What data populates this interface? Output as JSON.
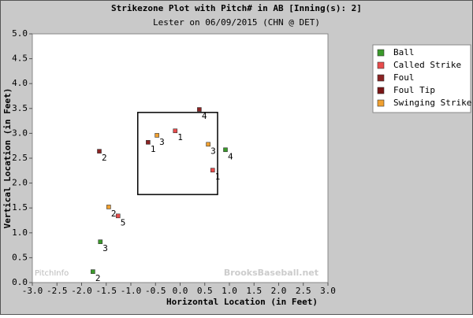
{
  "chart_data": {
    "type": "scatter",
    "title": "Strikezone Plot with Pitch# in AB [Inning(s): 2]",
    "subtitle": "Lester on 06/09/2015 (CHN @ DET)",
    "x_label": "Horizontal Location (in Feet)",
    "y_label": "Vertical Location (in Feet)",
    "xlim": [
      -3,
      3
    ],
    "ylim": [
      0,
      5
    ],
    "xticks": [
      {
        "value": -3,
        "label": "-3.0"
      },
      -2.5,
      {
        "value": -2,
        "label": "-2.0"
      },
      -1.5,
      {
        "value": -1,
        "label": "-1.0"
      },
      -0.5,
      {
        "value": 0,
        "label": "0.0"
      },
      0.5,
      {
        "value": 1,
        "label": "1.0"
      },
      1.5,
      {
        "value": 2,
        "label": "2.0"
      },
      2.5,
      {
        "value": 3,
        "label": "3.0"
      }
    ],
    "yticks": [
      {
        "value": 0,
        "label": "0.0"
      },
      0.5,
      {
        "value": 1,
        "label": "1.0"
      },
      1.5,
      {
        "value": 2,
        "label": "2.0"
      },
      2.5,
      {
        "value": 3,
        "label": "3.0"
      },
      3.5,
      {
        "value": 4,
        "label": "4.0"
      },
      4.5,
      {
        "value": 5,
        "label": "5.0"
      }
    ],
    "legend_position": "outside-top-right",
    "strike_zone": {
      "x": [
        -0.86,
        0.76
      ],
      "y": [
        1.77,
        3.42
      ]
    },
    "watermarks": [
      "PitchInfo",
      "BrooksBaseball.net"
    ],
    "series": [
      {
        "name": "Ball",
        "color": "#3a9a2a",
        "x": [
          0.92,
          -1.62,
          -1.77
        ],
        "values": [
          2.67,
          0.82,
          0.22
        ],
        "pitch_numbers": [
          4,
          3,
          2
        ]
      },
      {
        "name": "Called Strike",
        "color": "#e84c4c",
        "x": [
          -0.1,
          0.66,
          -1.26
        ],
        "values": [
          3.05,
          2.26,
          1.34
        ],
        "pitch_numbers": [
          1,
          1,
          5
        ]
      },
      {
        "name": "Foul",
        "color": "#8b2323",
        "x": [
          -1.64,
          -0.65,
          0.39
        ],
        "values": [
          2.64,
          2.82,
          3.48
        ],
        "pitch_numbers": [
          2,
          1,
          4
        ]
      },
      {
        "name": "Foul Tip",
        "color": "#7a1515",
        "x": [],
        "values": [],
        "pitch_numbers": []
      },
      {
        "name": "Swinging Strike",
        "color": "#f0a030",
        "x": [
          -0.47,
          0.57,
          -1.45
        ],
        "values": [
          2.96,
          2.78,
          1.52
        ],
        "pitch_numbers": [
          3,
          3,
          2
        ]
      }
    ]
  }
}
